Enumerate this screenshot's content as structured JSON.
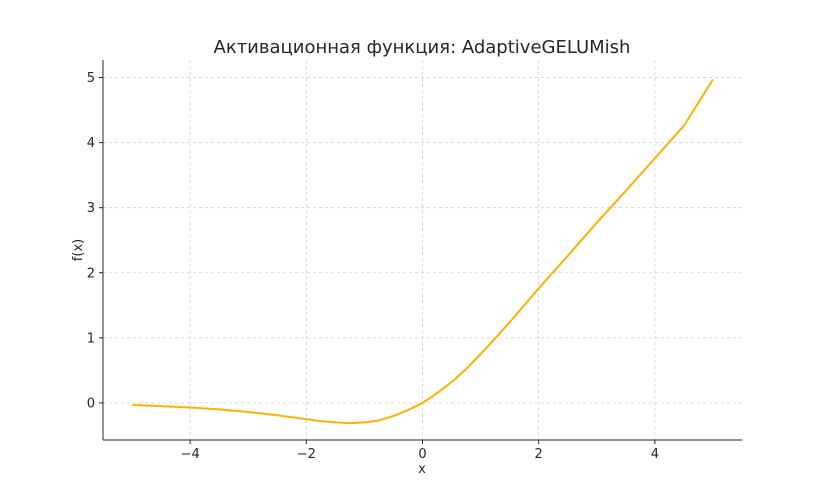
{
  "chart_data": {
    "type": "line",
    "title": "Активационная функция: AdaptiveGELUMish",
    "xlabel": "x",
    "ylabel": "f(x)",
    "xlim": [
      -5.5,
      5.5
    ],
    "ylim": [
      -0.57,
      5.27
    ],
    "xticks": [
      -4,
      -2,
      0,
      2,
      4
    ],
    "xtick_labels": [
      "−4",
      "−2",
      "0",
      "2",
      "4"
    ],
    "yticks": [
      0,
      1,
      2,
      3,
      4,
      5
    ],
    "ytick_labels": [
      "0",
      "1",
      "2",
      "3",
      "4",
      "5"
    ],
    "grid": true,
    "series": [
      {
        "color": "#ffb000",
        "x": [
          -5,
          -4.5,
          -4,
          -3.5,
          -3,
          -2.5,
          -2,
          -1.75,
          -1.5,
          -1.25,
          -1,
          -0.75,
          -0.5,
          -0.25,
          0,
          0.25,
          0.5,
          0.75,
          1,
          1.25,
          1.5,
          1.75,
          2,
          2.5,
          3,
          3.5,
          4,
          4.5,
          5
        ],
        "y": [
          -0.03,
          -0.05,
          -0.07,
          -0.1,
          -0.14,
          -0.19,
          -0.25,
          -0.28,
          -0.3,
          -0.31,
          -0.3,
          -0.27,
          -0.2,
          -0.11,
          0,
          0.15,
          0.32,
          0.52,
          0.75,
          0.99,
          1.24,
          1.5,
          1.76,
          2.26,
          2.77,
          3.26,
          3.76,
          4.26,
          4.97
        ]
      }
    ]
  }
}
